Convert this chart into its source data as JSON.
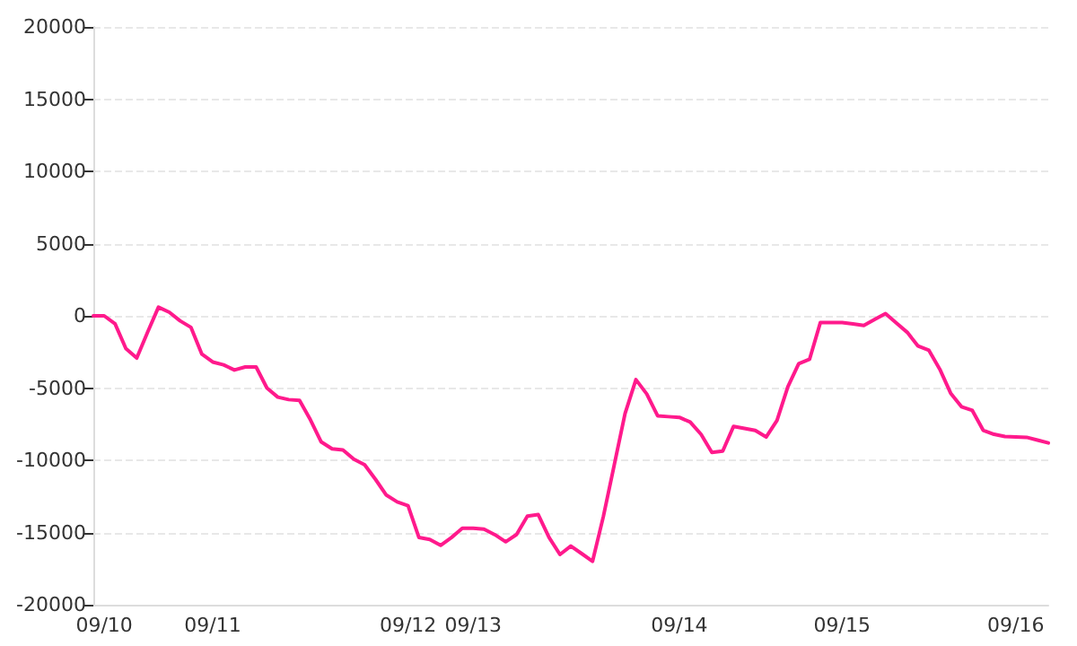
{
  "chart_data": {
    "type": "line",
    "categories": [
      null,
      "09/10",
      null,
      null,
      null,
      null,
      null,
      null,
      null,
      null,
      null,
      "09/11",
      null,
      null,
      null,
      null,
      null,
      null,
      null,
      null,
      null,
      null,
      null,
      null,
      null,
      null,
      null,
      null,
      null,
      "09/12",
      null,
      null,
      null,
      null,
      null,
      "09/13",
      null,
      null,
      null,
      null,
      null,
      null,
      null,
      null,
      null,
      null,
      null,
      null,
      null,
      null,
      null,
      null,
      null,
      null,
      "09/14",
      null,
      null,
      null,
      null,
      null,
      null,
      null,
      null,
      null,
      null,
      null,
      null,
      null,
      null,
      "09/15",
      null,
      null,
      null,
      null,
      null,
      null,
      null,
      null,
      null,
      null,
      null,
      null,
      null,
      null,
      null,
      "09/16",
      null,
      null,
      null
    ],
    "series": [
      {
        "color": "#ff1a8c",
        "values": [
          0,
          0,
          -550,
          -2270,
          -2925,
          -1130,
          600,
          250,
          -350,
          -800,
          -2650,
          -3195,
          -3390,
          -3750,
          -3540,
          -3540,
          -5000,
          -5630,
          -5800,
          -5860,
          -7190,
          -8730,
          -9210,
          -9290,
          -9920,
          -10310,
          -11320,
          -12410,
          -12880,
          -13140,
          -15340,
          -15480,
          -15890,
          -15350,
          -14710,
          -14710,
          -14770,
          -15150,
          -15640,
          -15140,
          -13860,
          -13760,
          -15350,
          -16520,
          -15940,
          -16460,
          -17000,
          -13890,
          -10330,
          -6760,
          -4420,
          -5410,
          -6920,
          -6980,
          -7030,
          -7350,
          -8200,
          -9460,
          -9360,
          -7650,
          -7800,
          -7940,
          -8390,
          -7250,
          -4910,
          -3320,
          -3010,
          -460,
          -460,
          -460,
          -560,
          -670,
          -250,
          150,
          -500,
          -1140,
          -2090,
          -2390,
          -3690,
          -5350,
          -6290,
          -6550,
          -7920,
          -8200,
          -8350,
          -8380,
          -8410,
          -8600,
          -8800
        ]
      }
    ],
    "ylim": [
      -20000,
      20000
    ],
    "yticks": [
      -20000,
      -15000,
      -10000,
      -5000,
      0,
      5000,
      10000,
      15000,
      20000
    ],
    "grid": "y",
    "marker": "none",
    "line_style": "solid"
  }
}
